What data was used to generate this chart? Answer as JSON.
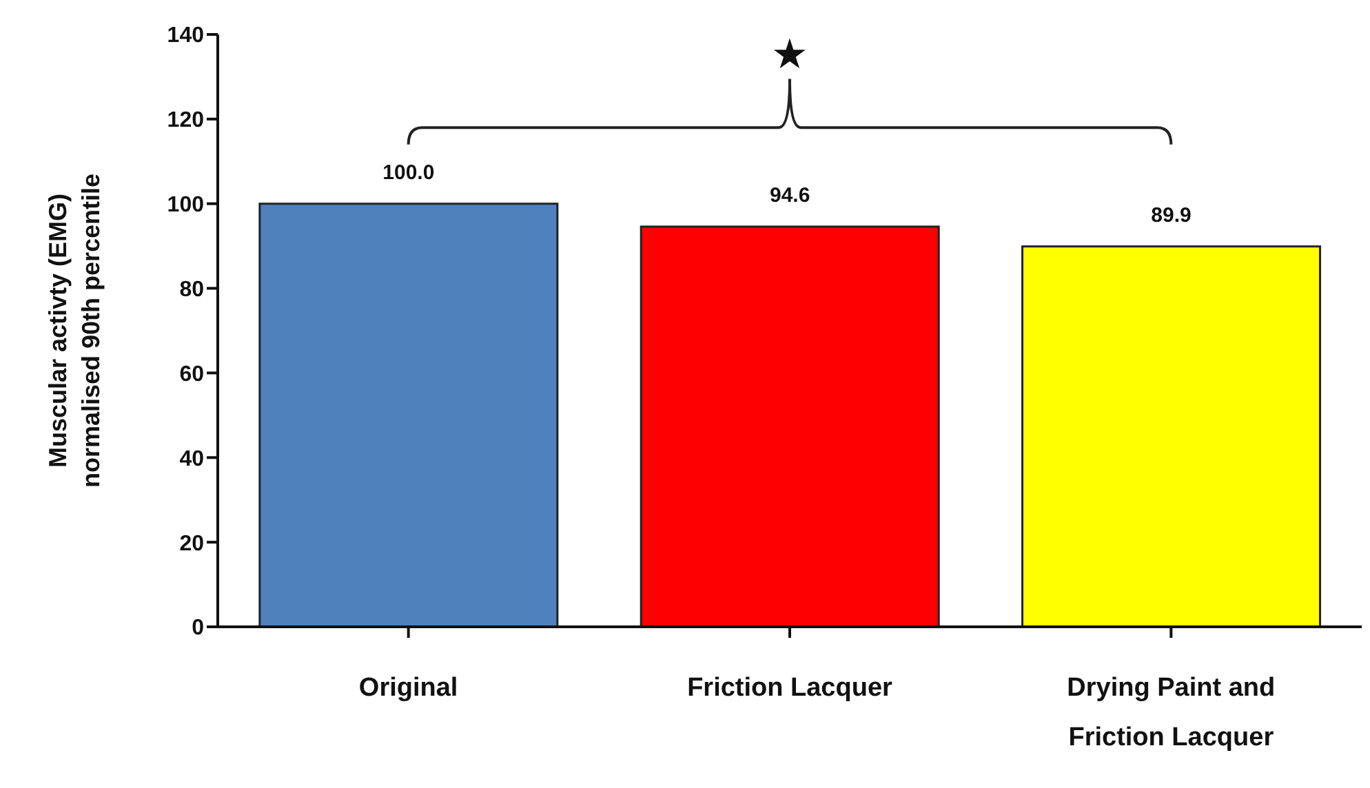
{
  "chart_data": {
    "type": "bar",
    "ylabel": "Muscular activty (EMG)\nnormalised  90th percentile",
    "categories": [
      "Original",
      "Friction Lacquer",
      "Drying Paint and Friction Lacquer"
    ],
    "values": [
      100.0,
      94.6,
      89.9
    ],
    "value_labels": [
      "100.0",
      "94.6",
      "89.9"
    ],
    "colors": [
      "#4f81bd",
      "#ff0000",
      "#ffff00"
    ],
    "ylim": [
      0,
      140
    ],
    "yticks": [
      0,
      20,
      40,
      60,
      80,
      100,
      120,
      140
    ],
    "grid": false,
    "legend": false,
    "annotations": [
      "★"
    ]
  }
}
